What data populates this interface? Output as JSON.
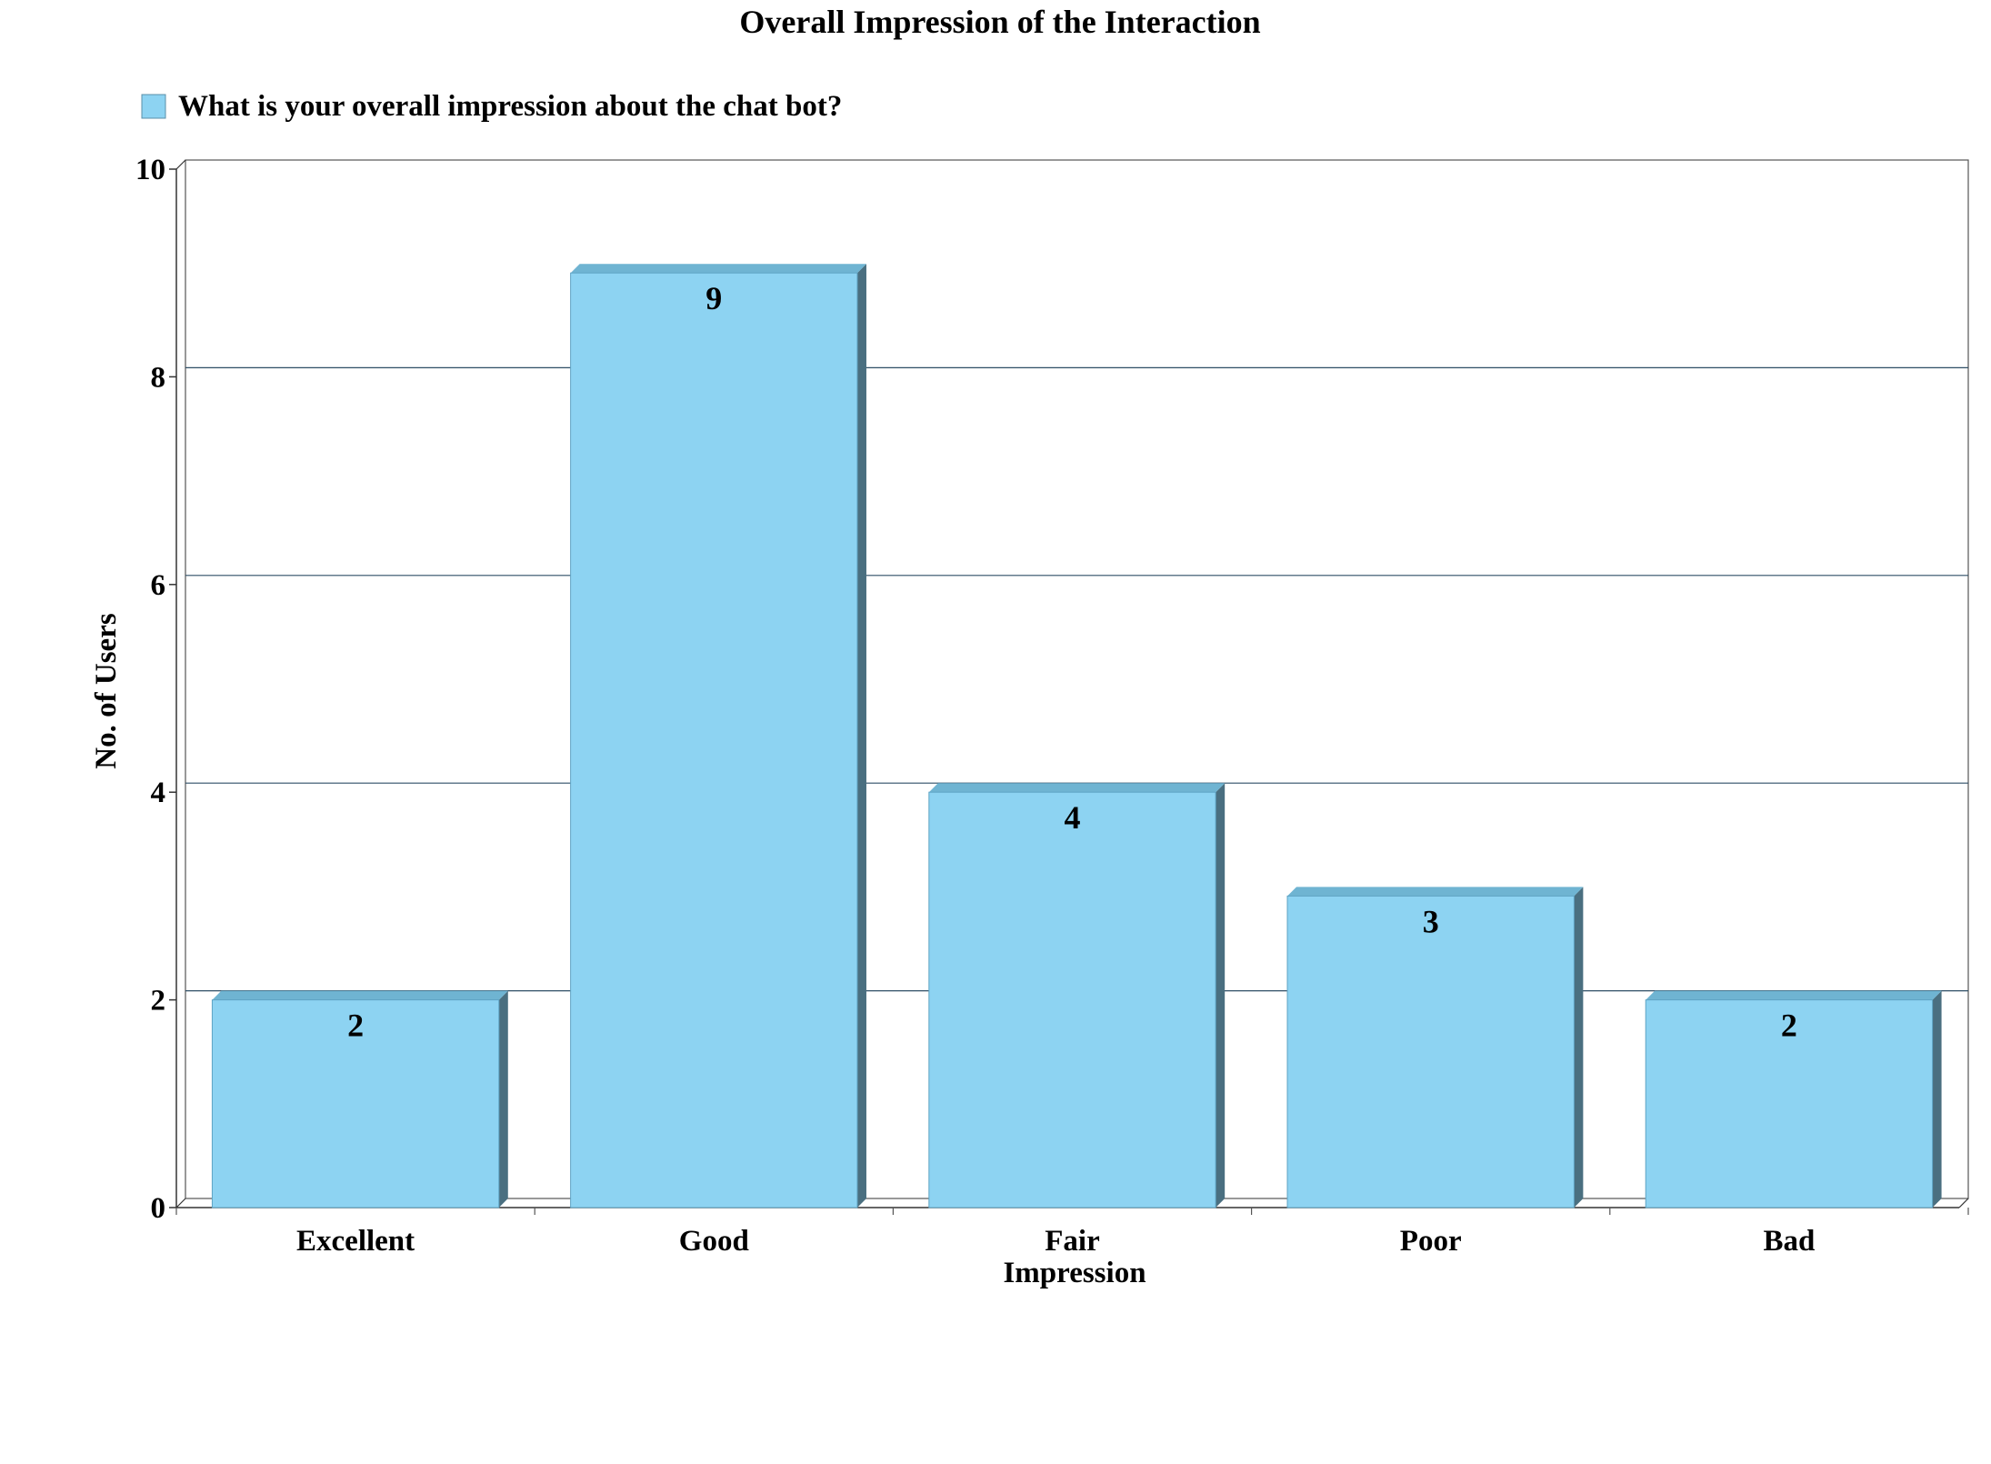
{
  "chart_data": {
    "type": "bar",
    "title": "Overall Impression of the Interaction",
    "xlabel": "Impression",
    "ylabel": "No. of  Users",
    "categories": [
      "Excellent",
      "Good",
      "Fair",
      "Poor",
      "Bad"
    ],
    "series": [
      {
        "name": "What is your overall impression about the chat bot?",
        "values": [
          2,
          9,
          4,
          3,
          2
        ],
        "color": "#8DD3F2",
        "side_color": "#4A6F80",
        "top_color": "#6FB4D2"
      }
    ],
    "data_labels": [
      "2",
      "9",
      "4",
      "3",
      "2"
    ],
    "yticks": [
      "0",
      "2",
      "4",
      "6",
      "8",
      "10"
    ],
    "ylim": [
      0,
      10
    ],
    "grid": true,
    "grid_color": "#2F4F66",
    "legend_position": "top-left",
    "style": "3d"
  }
}
